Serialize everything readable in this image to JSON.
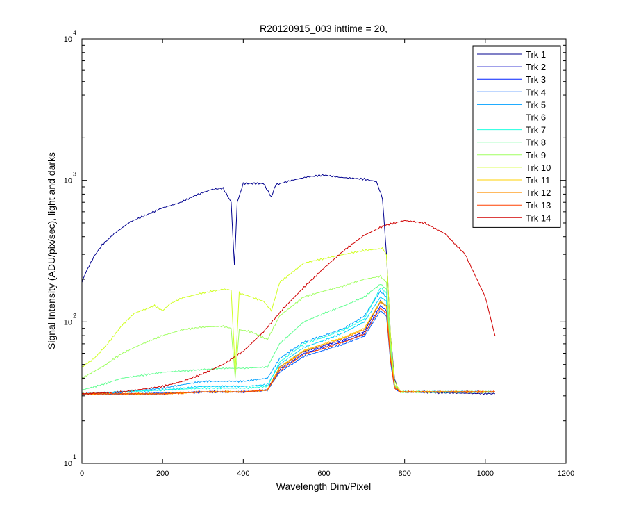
{
  "chart_data": {
    "type": "line",
    "title": "R20120915_003 inttime = 20,",
    "xlabel": "Wavelength Dim/Pixel",
    "ylabel": "Signal Intensity (ADU/pix/sec), light and darks",
    "xlim": [
      0,
      1200
    ],
    "ylim": [
      10,
      10000
    ],
    "yscale": "log",
    "grid": false,
    "legend_position": "top-right",
    "x_ticks": [
      "0",
      "200",
      "400",
      "600",
      "800",
      "1000",
      "1200"
    ],
    "y_ticks": [
      {
        "base": "10",
        "exp": "1"
      },
      {
        "base": "10",
        "exp": "2"
      },
      {
        "base": "10",
        "exp": "3"
      },
      {
        "base": "10",
        "exp": "4"
      }
    ],
    "series": [
      {
        "name": "Trk 1",
        "color": "#00008f",
        "profile": [
          [
            0,
            190
          ],
          [
            10,
            225
          ],
          [
            30,
            290
          ],
          [
            50,
            350
          ],
          [
            80,
            420
          ],
          [
            120,
            510
          ],
          [
            160,
            570
          ],
          [
            200,
            640
          ],
          [
            240,
            690
          ],
          [
            280,
            780
          ],
          [
            320,
            860
          ],
          [
            350,
            880
          ],
          [
            370,
            700
          ],
          [
            378,
            250
          ],
          [
            385,
            700
          ],
          [
            400,
            950
          ],
          [
            450,
            950
          ],
          [
            470,
            760
          ],
          [
            480,
            930
          ],
          [
            520,
            1000
          ],
          [
            560,
            1060
          ],
          [
            600,
            1090
          ],
          [
            640,
            1050
          ],
          [
            700,
            1020
          ],
          [
            730,
            980
          ],
          [
            745,
            750
          ],
          [
            755,
            300
          ],
          [
            765,
            80
          ],
          [
            775,
            40
          ],
          [
            785,
            32
          ],
          [
            1024,
            31
          ]
        ]
      },
      {
        "name": "Trk 2",
        "color": "#0000c8",
        "profile": [
          [
            0,
            31
          ],
          [
            150,
            31
          ],
          [
            300,
            32
          ],
          [
            400,
            32
          ],
          [
            460,
            33
          ],
          [
            490,
            48
          ],
          [
            550,
            62
          ],
          [
            600,
            68
          ],
          [
            650,
            75
          ],
          [
            700,
            85
          ],
          [
            740,
            140
          ],
          [
            755,
            130
          ],
          [
            765,
            60
          ],
          [
            775,
            35
          ],
          [
            790,
            32
          ],
          [
            1024,
            32
          ]
        ]
      },
      {
        "name": "Trk 3",
        "color": "#0020ff",
        "profile": [
          [
            0,
            31
          ],
          [
            200,
            31
          ],
          [
            300,
            32
          ],
          [
            400,
            32
          ],
          [
            460,
            33
          ],
          [
            490,
            46
          ],
          [
            550,
            60
          ],
          [
            600,
            66
          ],
          [
            650,
            73
          ],
          [
            700,
            82
          ],
          [
            740,
            130
          ],
          [
            755,
            120
          ],
          [
            765,
            55
          ],
          [
            775,
            34
          ],
          [
            790,
            32
          ],
          [
            1024,
            32
          ]
        ]
      },
      {
        "name": "Trk 4",
        "color": "#0060ff",
        "profile": [
          [
            0,
            31
          ],
          [
            150,
            31
          ],
          [
            300,
            32
          ],
          [
            400,
            32
          ],
          [
            460,
            33
          ],
          [
            490,
            44
          ],
          [
            550,
            57
          ],
          [
            600,
            63
          ],
          [
            650,
            70
          ],
          [
            700,
            79
          ],
          [
            740,
            120
          ],
          [
            755,
            110
          ],
          [
            765,
            52
          ],
          [
            775,
            34
          ],
          [
            790,
            32
          ],
          [
            1024,
            32
          ]
        ]
      },
      {
        "name": "Trk 5",
        "color": "#00a0ff",
        "profile": [
          [
            0,
            31
          ],
          [
            100,
            32
          ],
          [
            200,
            34
          ],
          [
            250,
            36
          ],
          [
            300,
            38
          ],
          [
            350,
            38
          ],
          [
            400,
            38
          ],
          [
            460,
            40
          ],
          [
            490,
            55
          ],
          [
            550,
            72
          ],
          [
            600,
            80
          ],
          [
            650,
            90
          ],
          [
            700,
            110
          ],
          [
            740,
            165
          ],
          [
            755,
            150
          ],
          [
            765,
            60
          ],
          [
            775,
            35
          ],
          [
            790,
            32
          ],
          [
            1024,
            32
          ]
        ]
      },
      {
        "name": "Trk 6",
        "color": "#00d0ff",
        "profile": [
          [
            0,
            31
          ],
          [
            100,
            32
          ],
          [
            200,
            33
          ],
          [
            300,
            35
          ],
          [
            400,
            35
          ],
          [
            460,
            36
          ],
          [
            490,
            50
          ],
          [
            550,
            66
          ],
          [
            600,
            74
          ],
          [
            650,
            84
          ],
          [
            700,
            100
          ],
          [
            740,
            150
          ],
          [
            755,
            140
          ],
          [
            765,
            58
          ],
          [
            775,
            35
          ],
          [
            790,
            32
          ],
          [
            1024,
            32
          ]
        ]
      },
      {
        "name": "Trk 7",
        "color": "#20ffe0",
        "profile": [
          [
            0,
            31
          ],
          [
            100,
            32
          ],
          [
            200,
            33
          ],
          [
            300,
            34
          ],
          [
            400,
            34
          ],
          [
            460,
            35
          ],
          [
            490,
            52
          ],
          [
            550,
            70
          ],
          [
            600,
            78
          ],
          [
            650,
            88
          ],
          [
            700,
            105
          ],
          [
            740,
            175
          ],
          [
            755,
            160
          ],
          [
            765,
            60
          ],
          [
            775,
            35
          ],
          [
            790,
            32
          ],
          [
            1024,
            32
          ]
        ]
      },
      {
        "name": "Trk 8",
        "color": "#60ff90",
        "profile": [
          [
            0,
            33
          ],
          [
            50,
            36
          ],
          [
            100,
            40
          ],
          [
            200,
            44
          ],
          [
            300,
            46
          ],
          [
            350,
            47
          ],
          [
            400,
            47
          ],
          [
            460,
            48
          ],
          [
            490,
            70
          ],
          [
            550,
            100
          ],
          [
            600,
            115
          ],
          [
            650,
            130
          ],
          [
            700,
            150
          ],
          [
            740,
            185
          ],
          [
            755,
            170
          ],
          [
            765,
            65
          ],
          [
            775,
            36
          ],
          [
            790,
            32
          ],
          [
            1024,
            32
          ]
        ]
      },
      {
        "name": "Trk 9",
        "color": "#a0ff60",
        "profile": [
          [
            0,
            40
          ],
          [
            50,
            48
          ],
          [
            100,
            60
          ],
          [
            150,
            70
          ],
          [
            200,
            80
          ],
          [
            250,
            88
          ],
          [
            300,
            92
          ],
          [
            350,
            93
          ],
          [
            370,
            90
          ],
          [
            380,
            40
          ],
          [
            390,
            88
          ],
          [
            420,
            85
          ],
          [
            460,
            75
          ],
          [
            490,
            110
          ],
          [
            550,
            150
          ],
          [
            600,
            165
          ],
          [
            650,
            180
          ],
          [
            700,
            200
          ],
          [
            740,
            210
          ],
          [
            755,
            190
          ],
          [
            765,
            70
          ],
          [
            775,
            36
          ],
          [
            790,
            32
          ],
          [
            1024,
            32
          ]
        ]
      },
      {
        "name": "Trk 10",
        "color": "#d0ff20",
        "profile": [
          [
            0,
            48
          ],
          [
            30,
            55
          ],
          [
            60,
            68
          ],
          [
            100,
            95
          ],
          [
            130,
            115
          ],
          [
            180,
            130
          ],
          [
            200,
            120
          ],
          [
            220,
            135
          ],
          [
            250,
            148
          ],
          [
            300,
            160
          ],
          [
            350,
            170
          ],
          [
            370,
            168
          ],
          [
            380,
            45
          ],
          [
            390,
            160
          ],
          [
            420,
            150
          ],
          [
            450,
            140
          ],
          [
            470,
            120
          ],
          [
            490,
            190
          ],
          [
            550,
            260
          ],
          [
            600,
            280
          ],
          [
            650,
            300
          ],
          [
            700,
            320
          ],
          [
            745,
            330
          ],
          [
            755,
            300
          ],
          [
            765,
            80
          ],
          [
            775,
            38
          ],
          [
            790,
            32
          ],
          [
            1024,
            32
          ]
        ]
      },
      {
        "name": "Trk 11",
        "color": "#ffd000",
        "profile": [
          [
            0,
            31
          ],
          [
            200,
            31
          ],
          [
            300,
            32
          ],
          [
            400,
            32
          ],
          [
            460,
            33
          ],
          [
            490,
            48
          ],
          [
            550,
            63
          ],
          [
            600,
            70
          ],
          [
            650,
            78
          ],
          [
            700,
            90
          ],
          [
            740,
            140
          ],
          [
            755,
            130
          ],
          [
            765,
            58
          ],
          [
            775,
            35
          ],
          [
            790,
            32
          ],
          [
            1024,
            32
          ]
        ]
      },
      {
        "name": "Trk 12",
        "color": "#ff9000",
        "profile": [
          [
            0,
            31
          ],
          [
            200,
            31
          ],
          [
            300,
            32
          ],
          [
            400,
            32
          ],
          [
            460,
            33
          ],
          [
            490,
            47
          ],
          [
            550,
            62
          ],
          [
            600,
            69
          ],
          [
            650,
            77
          ],
          [
            700,
            88
          ],
          [
            740,
            138
          ],
          [
            755,
            128
          ],
          [
            765,
            57
          ],
          [
            775,
            35
          ],
          [
            790,
            32
          ],
          [
            1024,
            32
          ]
        ]
      },
      {
        "name": "Trk 13",
        "color": "#ff4000",
        "profile": [
          [
            0,
            31
          ],
          [
            200,
            31
          ],
          [
            300,
            32
          ],
          [
            400,
            32
          ],
          [
            460,
            33
          ],
          [
            490,
            45
          ],
          [
            550,
            59
          ],
          [
            600,
            65
          ],
          [
            650,
            72
          ],
          [
            700,
            82
          ],
          [
            740,
            125
          ],
          [
            755,
            115
          ],
          [
            765,
            54
          ],
          [
            775,
            34
          ],
          [
            790,
            32
          ],
          [
            1024,
            32
          ]
        ]
      },
      {
        "name": "Trk 14",
        "color": "#d00000",
        "profile": [
          [
            0,
            31
          ],
          [
            100,
            32
          ],
          [
            200,
            35
          ],
          [
            250,
            38
          ],
          [
            300,
            43
          ],
          [
            350,
            50
          ],
          [
            400,
            62
          ],
          [
            450,
            85
          ],
          [
            500,
            125
          ],
          [
            550,
            175
          ],
          [
            600,
            240
          ],
          [
            650,
            320
          ],
          [
            700,
            410
          ],
          [
            750,
            480
          ],
          [
            800,
            520
          ],
          [
            850,
            500
          ],
          [
            900,
            420
          ],
          [
            950,
            300
          ],
          [
            1000,
            150
          ],
          [
            1024,
            80
          ]
        ]
      }
    ]
  }
}
